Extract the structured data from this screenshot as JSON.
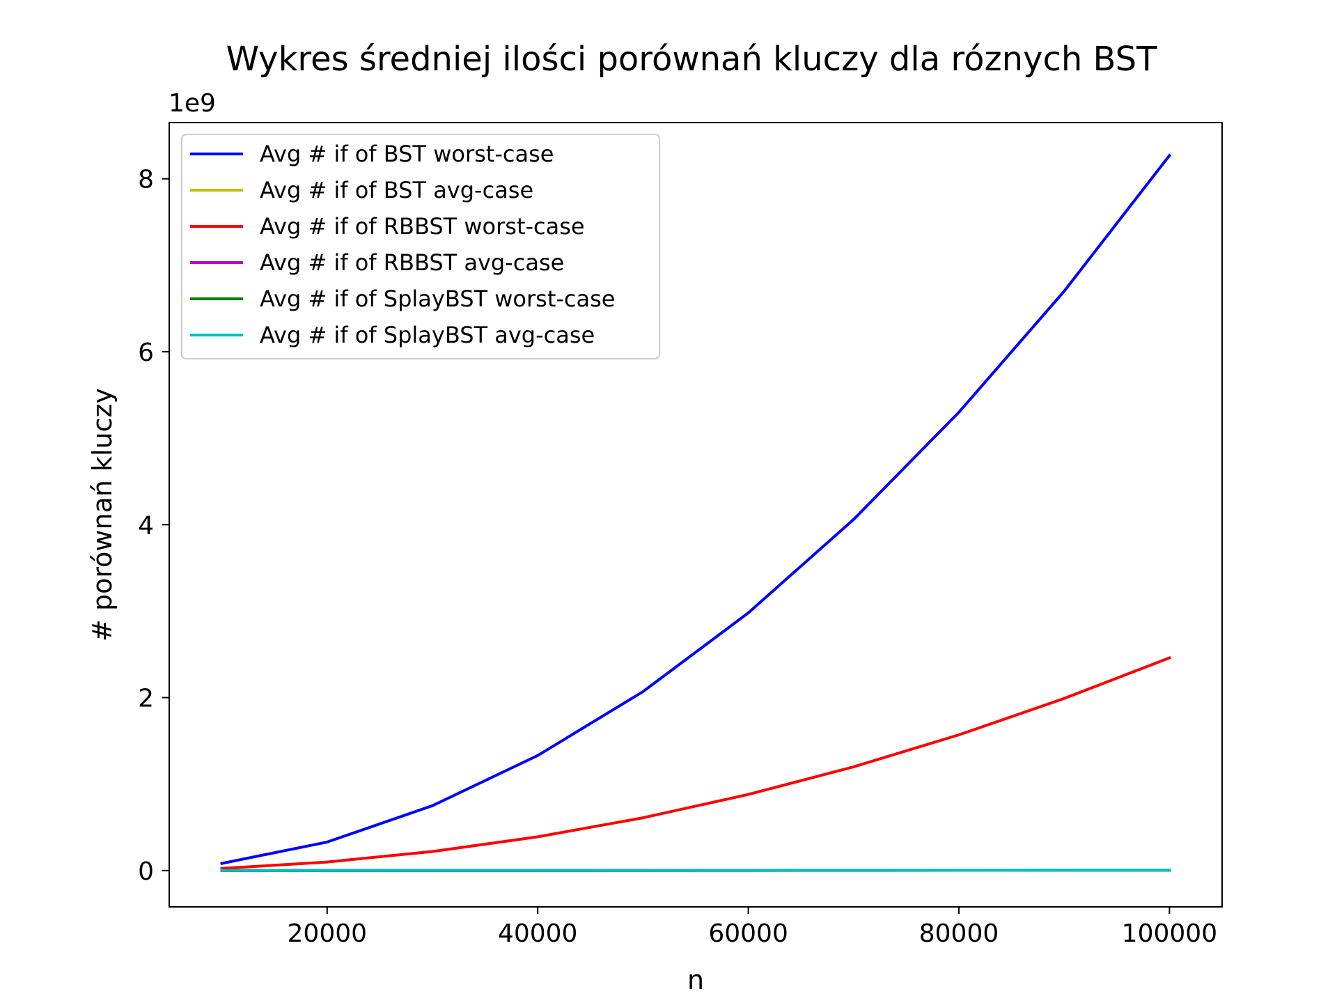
{
  "chart_data": {
    "type": "line",
    "title": "Wykres średniej ilości porównań kluczy dla róznych BST",
    "xlabel": "n",
    "ylabel": "# porównań kluczy",
    "y_multiplier_label": "1e9",
    "x": [
      10000,
      20000,
      30000,
      40000,
      50000,
      60000,
      70000,
      80000,
      90000,
      100000
    ],
    "xlim": [
      5000,
      105000
    ],
    "ylim": [
      -0.42,
      8.65
    ],
    "x_ticks": [
      20000,
      40000,
      60000,
      80000,
      100000
    ],
    "y_ticks": [
      0,
      2,
      4,
      6,
      8
    ],
    "grid": false,
    "legend_position": "top-left",
    "series": [
      {
        "name": "Avg # if of BST worst-case",
        "color": "#0000ff",
        "values": [
          0.083,
          0.33,
          0.75,
          1.33,
          2.07,
          2.98,
          4.06,
          5.3,
          6.7,
          8.27
        ]
      },
      {
        "name": "Avg # if of BST avg-case",
        "color": "#bfbf00",
        "values": [
          0.0003,
          0.0006,
          0.0009,
          0.0013,
          0.0016,
          0.002,
          0.0023,
          0.0027,
          0.003,
          0.0034
        ]
      },
      {
        "name": "Avg # if of RBBST worst-case",
        "color": "#ff0000",
        "values": [
          0.025,
          0.099,
          0.22,
          0.39,
          0.61,
          0.88,
          1.2,
          1.57,
          1.99,
          2.46
        ]
      },
      {
        "name": "Avg # if of RBBST avg-case",
        "color": "#bf00bf",
        "values": [
          0.0003,
          0.0006,
          0.0009,
          0.0012,
          0.0015,
          0.0018,
          0.0022,
          0.0025,
          0.0028,
          0.0032
        ]
      },
      {
        "name": "Avg # if of SplayBST worst-case",
        "color": "#008000",
        "values": [
          0.0004,
          0.0008,
          0.0012,
          0.0016,
          0.002,
          0.0024,
          0.0028,
          0.0032,
          0.0036,
          0.004
        ]
      },
      {
        "name": "Avg # if of SplayBST avg-case",
        "color": "#00bfbf",
        "values": [
          0.0004,
          0.0008,
          0.0012,
          0.0016,
          0.002,
          0.0024,
          0.0028,
          0.0032,
          0.0036,
          0.004
        ]
      }
    ]
  }
}
